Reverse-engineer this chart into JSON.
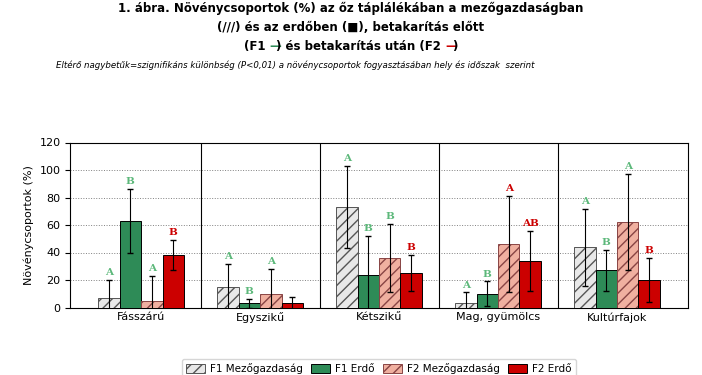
{
  "title_line1": "1. ábra. Növénycsoportok (%) az őz táplálékában a mezőgazdaságban",
  "title_line2": "(///) és az erdőben (■), betakarítás előtt",
  "title_line3_pre": "(F1 ",
  "title_line3_dash1": "—",
  "title_line3_mid": ") és betakarítás után (F2 ",
  "title_line3_dash2": "—",
  "title_line3_post": ")",
  "subtitle": "Eltérő nagybetűk=szignifikáns különbség (P<0,01) a növénycsoportok fogyasztásában hely és időszak  szerint",
  "ylabel": "Növénycsoportok (%)",
  "ylim": [
    0,
    120
  ],
  "yticks": [
    0,
    20,
    40,
    60,
    80,
    100,
    120
  ],
  "categories": [
    "Fásszárú",
    "Egyszikű",
    "Kétszikű",
    "Mag, gyümölcs",
    "Kultúrfajok"
  ],
  "bar_width": 0.18,
  "groups": [
    "F1 Mezőgazdaság",
    "F1 Erdő",
    "F2 Mezőgazdaság",
    "F2 Erdő"
  ],
  "values": [
    [
      7,
      63,
      5,
      38
    ],
    [
      15,
      3,
      10,
      3
    ],
    [
      73,
      24,
      36,
      25
    ],
    [
      3,
      10,
      46,
      34
    ],
    [
      44,
      27,
      62,
      20
    ]
  ],
  "errors": [
    [
      13,
      23,
      18,
      11
    ],
    [
      17,
      3,
      18,
      5
    ],
    [
      30,
      28,
      25,
      13
    ],
    [
      8,
      9,
      35,
      22
    ],
    [
      28,
      15,
      35,
      16
    ]
  ],
  "bar_facecolors": [
    "#e8e8e8",
    "#2e8b57",
    "#f0b0a0",
    "#cc0000"
  ],
  "bar_hatches": [
    "///",
    "",
    "///",
    ""
  ],
  "bar_edgecolors": [
    "#555555",
    "#000000",
    "#884444",
    "#000000"
  ],
  "sig_labels": [
    [
      [
        "A",
        "#5cb87a"
      ],
      [
        "B",
        "#5cb87a"
      ],
      [
        "A",
        "#5cb87a"
      ],
      [
        "B",
        "#cc0000"
      ]
    ],
    [
      [
        "A",
        "#5cb87a"
      ],
      [
        "B",
        "#5cb87a"
      ],
      [
        "A",
        "#5cb87a"
      ],
      [
        "",
        ""
      ]
    ],
    [
      [
        "A",
        "#5cb87a"
      ],
      [
        "B",
        "#5cb87a"
      ],
      [
        "B",
        "#5cb87a"
      ],
      [
        "B",
        "#cc0000"
      ]
    ],
    [
      [
        "A",
        "#5cb87a"
      ],
      [
        "B",
        "#5cb87a"
      ],
      [
        "A",
        "#cc0000"
      ],
      [
        "AB",
        "#cc0000"
      ]
    ],
    [
      [
        "A",
        "#5cb87a"
      ],
      [
        "B",
        "#5cb87a"
      ],
      [
        "A",
        "#5cb87a"
      ],
      [
        "B",
        "#cc0000"
      ]
    ]
  ],
  "legend_facecolors": [
    "#e8e8e8",
    "#2e8b57",
    "#f0b0a0",
    "#cc0000"
  ],
  "legend_hatches": [
    "///",
    "",
    "///",
    ""
  ],
  "legend_edgecolors": [
    "#555555",
    "#000000",
    "#884444",
    "#000000"
  ],
  "dash_color_f1": "#2e8b57",
  "dash_color_f2": "#cc0000",
  "background_color": "#ffffff"
}
